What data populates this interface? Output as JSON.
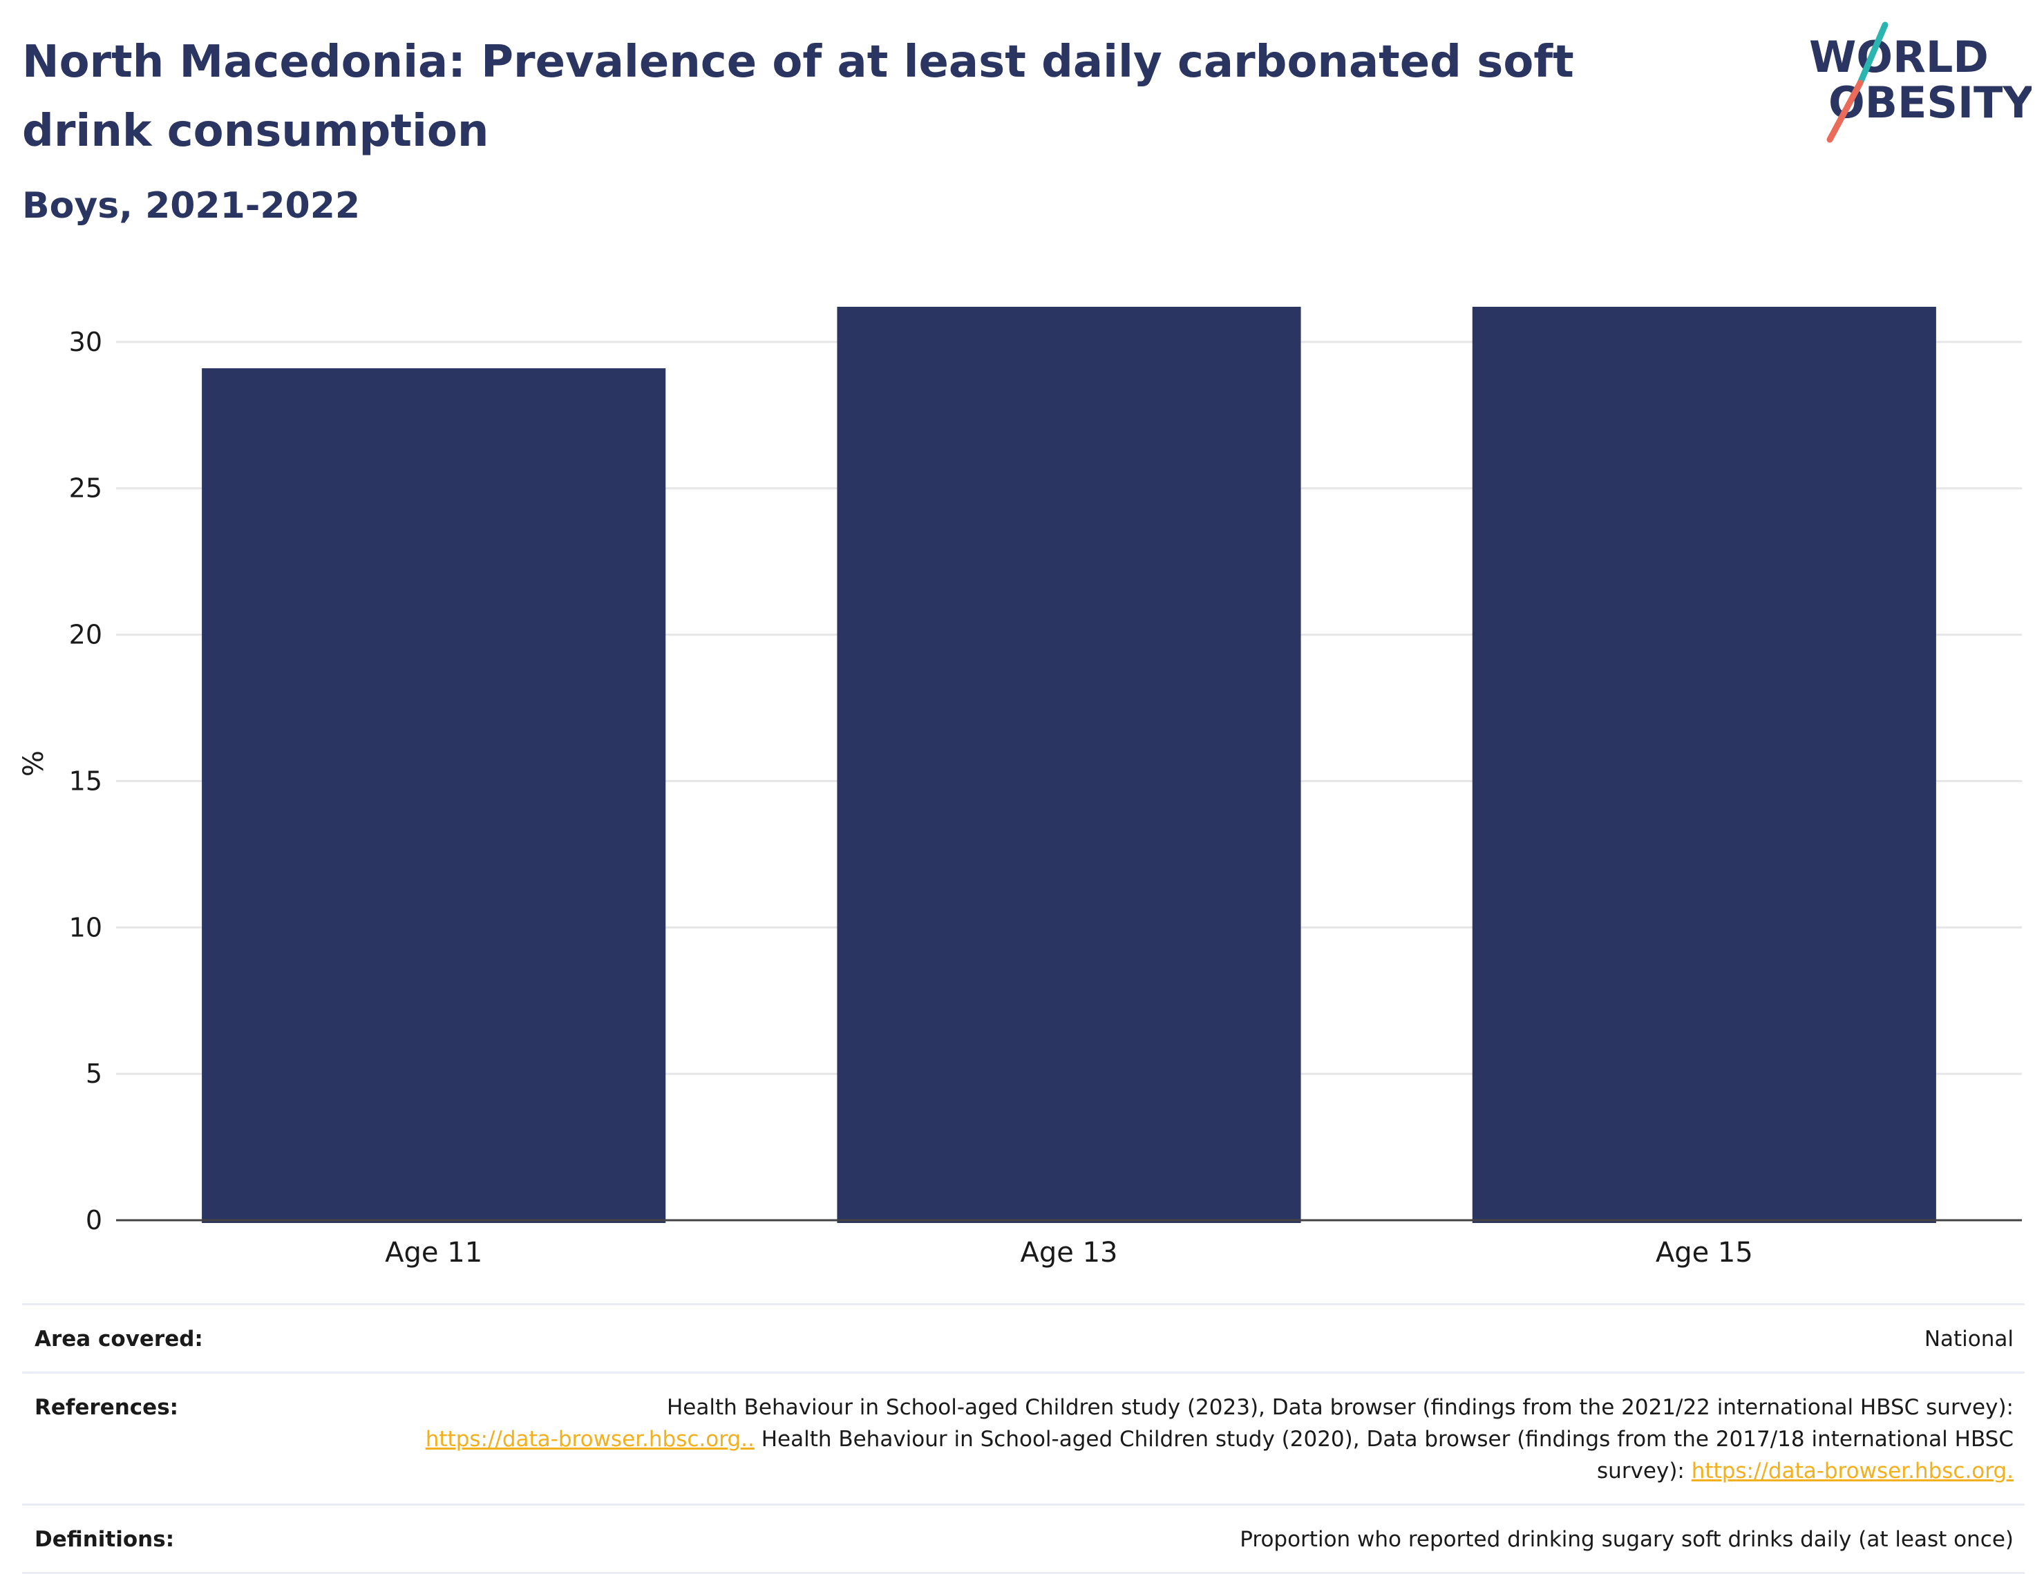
{
  "header": {
    "title": "North Macedonia: Prevalence of at least daily carbonated soft drink consumption",
    "subtitle": "Boys, 2021-2022"
  },
  "logo": {
    "line1": "WORLD",
    "line2": "OBESITY",
    "text_color": "#2a3561",
    "slash_top_color": "#2bb5b0",
    "slash_bottom_color": "#ea6b5a"
  },
  "chart_data": {
    "type": "bar",
    "categories": [
      "Age 11",
      "Age 13",
      "Age 15"
    ],
    "values": [
      29.1,
      31.2,
      31.2
    ],
    "title": "",
    "xlabel": "",
    "ylabel": "%",
    "ylim": [
      0,
      31.2
    ],
    "yticks": [
      0,
      5,
      10,
      15,
      20,
      25,
      30
    ],
    "grid": true,
    "bar_color": "#2a3561"
  },
  "meta": {
    "area": {
      "label": "Area covered:",
      "value": "National"
    },
    "references": {
      "label": "References:",
      "part1": "Health Behaviour in School-aged Children study (2023), Data browser (findings from the 2021/22 international HBSC survey):",
      "link1": "https://data-browser.hbsc.org..",
      "part2": " Health Behaviour in School-aged Children study (2020), Data browser (findings from the 2017/18 international HBSC survey):",
      "link2": "https://data-browser.hbsc.org."
    },
    "definitions": {
      "label": "Definitions:",
      "value": "Proportion who reported drinking sugary soft drinks daily (at least once)"
    },
    "link_color": "#f2b01e"
  }
}
